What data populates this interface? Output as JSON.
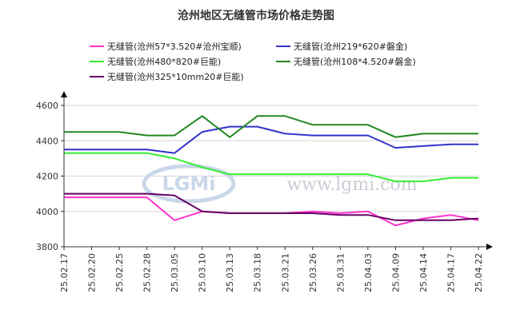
{
  "chart_data": {
    "type": "line",
    "title": "沧州地区无缝管市场价格走势图",
    "xlabel": "",
    "ylabel": "",
    "ylim": [
      3800,
      4600
    ],
    "yticks": [
      3800,
      4000,
      4200,
      4400,
      4600
    ],
    "x": [
      "25.02.17",
      "25.02.20",
      "25.02.25",
      "25.02.28",
      "25.03.05",
      "25.03.10",
      "25.03.13",
      "25.03.18",
      "25.03.21",
      "25.03.26",
      "25.03.31",
      "25.04.03",
      "25.04.09",
      "25.04.14",
      "25.04.17",
      "25.04.22"
    ],
    "grid": "horizontal",
    "legend_position": "top",
    "watermark": "www.lgmi.com",
    "watermark_logo": "LGMi",
    "series": [
      {
        "name": "无缝管(沧州57*3.520#沧州宝顺)",
        "color": "#ff33cc",
        "values": [
          4080,
          4080,
          4080,
          4080,
          3950,
          4000,
          3990,
          3990,
          3990,
          4000,
          3990,
          4000,
          3920,
          3960,
          3980,
          3950
        ]
      },
      {
        "name": "无缝管(沧州219*620#磐金)",
        "color": "#3333cc",
        "values": [
          4350,
          4350,
          4350,
          4350,
          4330,
          4450,
          4480,
          4480,
          4440,
          4430,
          4430,
          4430,
          4360,
          4370,
          4380,
          4380
        ]
      },
      {
        "name": "无缝管(沧州480*820#巨能)",
        "color": "#33ee33",
        "values": [
          4330,
          4330,
          4330,
          4330,
          4300,
          4250,
          4210,
          4210,
          4210,
          4210,
          4210,
          4210,
          4170,
          4170,
          4190,
          4190
        ]
      },
      {
        "name": "无缝管(沧州108*4.520#磐金)",
        "color": "#228822",
        "values": [
          4450,
          4450,
          4450,
          4430,
          4430,
          4540,
          4420,
          4540,
          4540,
          4490,
          4490,
          4490,
          4420,
          4440,
          4440,
          4440
        ]
      },
      {
        "name": "无缝管(沧州325*10mm20#巨能)",
        "color": "#660066",
        "values": [
          4100,
          4100,
          4100,
          4100,
          4090,
          4000,
          3990,
          3990,
          3990,
          3990,
          3980,
          3980,
          3950,
          3950,
          3950,
          3960
        ]
      }
    ]
  }
}
